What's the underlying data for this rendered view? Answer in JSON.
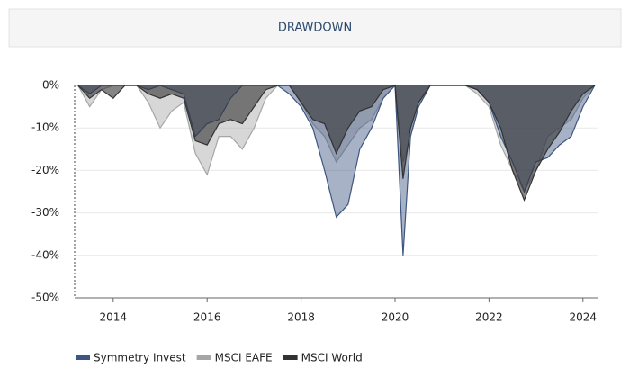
{
  "chart_data": {
    "type": "area",
    "title": "DRAWDOWN",
    "x": [
      2013.25,
      2013.5,
      2013.75,
      2014.0,
      2014.25,
      2014.5,
      2014.75,
      2015.0,
      2015.25,
      2015.5,
      2015.75,
      2016.0,
      2016.25,
      2016.5,
      2016.75,
      2017.0,
      2017.25,
      2017.5,
      2017.75,
      2018.0,
      2018.25,
      2018.5,
      2018.75,
      2019.0,
      2019.25,
      2019.5,
      2019.75,
      2020.0,
      2020.17,
      2020.33,
      2020.5,
      2020.75,
      2021.0,
      2021.25,
      2021.5,
      2021.75,
      2022.0,
      2022.25,
      2022.5,
      2022.75,
      2023.0,
      2023.25,
      2023.5,
      2023.75,
      2024.0,
      2024.25
    ],
    "series": [
      {
        "name": "MSCI EAFE",
        "color": "#a6a6a6",
        "values": [
          0,
          -5,
          -1,
          0,
          0,
          0,
          -4,
          -10,
          -6,
          -4,
          -16,
          -21,
          -12,
          -12,
          -15,
          -10,
          -3,
          0,
          0,
          -4,
          -9,
          -12,
          -18,
          -14,
          -10,
          -8,
          -3,
          0,
          -18,
          -12,
          -5,
          0,
          0,
          0,
          0,
          -2,
          -5,
          -14,
          -20,
          -25,
          -20,
          -12,
          -10,
          -8,
          -3,
          0
        ]
      },
      {
        "name": "Symmetry Invest",
        "color": "#3d5580",
        "values": [
          0,
          -2,
          0,
          0,
          0,
          0,
          -1,
          0,
          -1,
          -2,
          -12,
          -9,
          -8,
          -3,
          0,
          0,
          0,
          0,
          -2,
          -5,
          -10,
          -20,
          -31,
          -28,
          -15,
          -10,
          -3,
          0,
          -40,
          -12,
          -5,
          0,
          0,
          0,
          0,
          -1,
          -4,
          -12,
          -18,
          -25,
          -18,
          -17,
          -14,
          -12,
          -5,
          0
        ]
      },
      {
        "name": "MSCI World",
        "color": "#333333",
        "values": [
          0,
          -3,
          -1,
          -3,
          0,
          0,
          -2,
          -3,
          -2,
          -3,
          -13,
          -14,
          -9,
          -8,
          -9,
          -5,
          -1,
          0,
          0,
          -4,
          -8,
          -9,
          -16,
          -10,
          -6,
          -5,
          -1,
          0,
          -22,
          -10,
          -4,
          0,
          0,
          0,
          0,
          -1,
          -4,
          -10,
          -20,
          -27,
          -20,
          -15,
          -11,
          -6,
          -2,
          0
        ]
      }
    ],
    "legend_order": [
      1,
      0,
      2
    ],
    "xlim": [
      2013.18,
      2024.33
    ],
    "xticks": [
      2014,
      2016,
      2018,
      2020,
      2022,
      2024
    ],
    "ylim": [
      -50,
      0
    ],
    "yticks": [
      {
        "value": 0,
        "label": "0%"
      },
      {
        "value": -10,
        "label": "-10%"
      },
      {
        "value": -20,
        "label": "-20%"
      },
      {
        "value": -30,
        "label": "-30%"
      },
      {
        "value": -40,
        "label": "-40%"
      },
      {
        "value": -50,
        "label": "-50%"
      }
    ],
    "grid": true
  }
}
